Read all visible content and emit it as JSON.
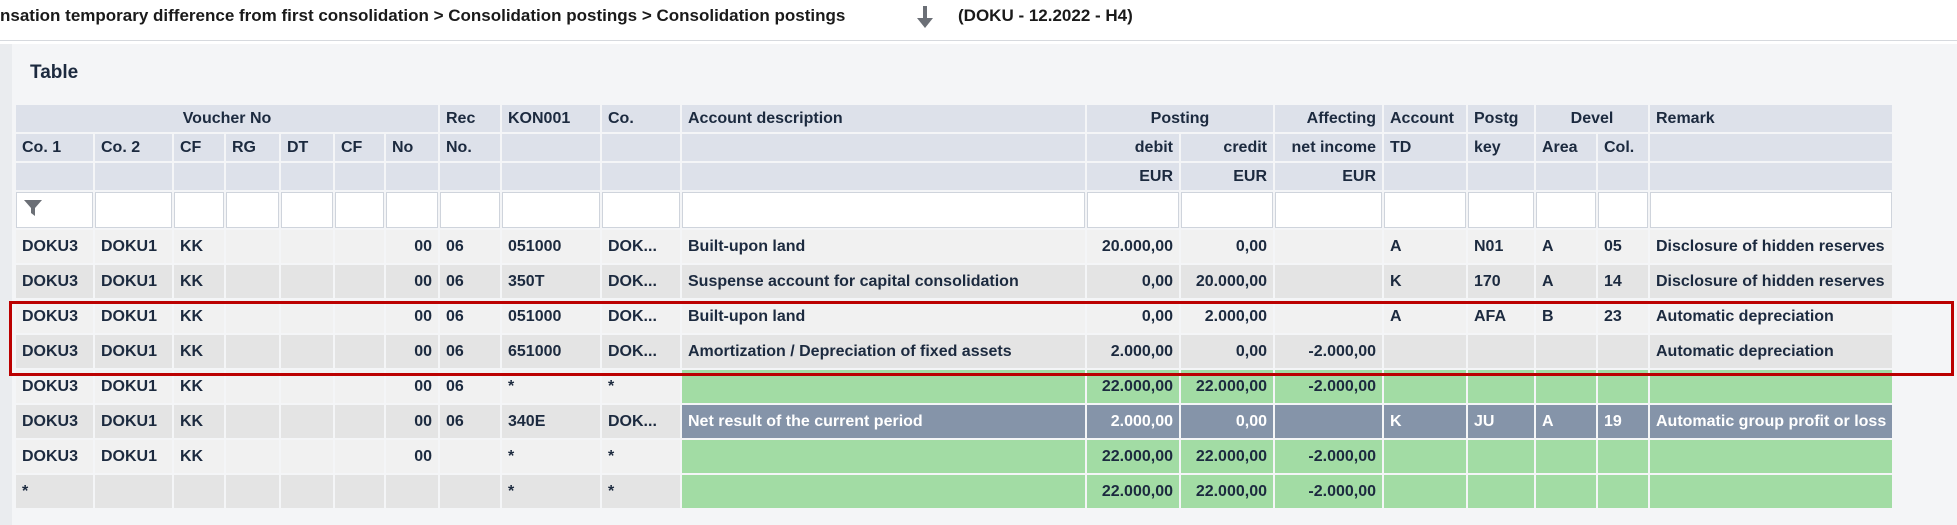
{
  "breadcrumb": {
    "path": "nsation temporary difference from first consolidation > Consolidation postings > Consolidation postings",
    "context": "(DOKU - 12.2022 - H4)"
  },
  "panel": {
    "title": "Table"
  },
  "header": {
    "group_voucher": "Voucher No",
    "rec": "Rec",
    "rec_no": "No.",
    "kon001": "KON001",
    "co": "Co.",
    "account_description": "Account description",
    "posting": "Posting",
    "debit": "debit",
    "credit": "credit",
    "debit_cur": "EUR",
    "credit_cur": "EUR",
    "affecting": "Affecting",
    "net_income": "net income",
    "affecting_cur": "EUR",
    "account": "Account",
    "td": "TD",
    "postg": "Postg",
    "key": "key",
    "devel": "Devel",
    "area": "Area",
    "col": "Col.",
    "remark": "Remark",
    "co1": "Co. 1",
    "co2": "Co. 2",
    "cf": "CF",
    "rg": "RG",
    "dt": "DT",
    "cf2": "CF",
    "no": "No"
  },
  "rows": [
    {
      "co1": "DOKU3",
      "co2": "DOKU1",
      "cf": "KK",
      "rg": "",
      "dt": "",
      "cf2": "",
      "no": "00",
      "rec": "06",
      "kon": "051000",
      "co": "DOK...",
      "desc": "Built-upon land",
      "debit": "20.000,00",
      "credit": "0,00",
      "aff": "",
      "acctd": "A",
      "key": "N01",
      "area": "A",
      "col": "05",
      "remark": "Disclosure of hidden reserves"
    },
    {
      "co1": "DOKU3",
      "co2": "DOKU1",
      "cf": "KK",
      "rg": "",
      "dt": "",
      "cf2": "",
      "no": "00",
      "rec": "06",
      "kon": "350T",
      "co": "DOK...",
      "desc": "Suspense account for capital consolidation",
      "debit": "0,00",
      "credit": "20.000,00",
      "aff": "",
      "acctd": "K",
      "key": "170",
      "area": "A",
      "col": "14",
      "remark": "Disclosure of hidden reserves"
    },
    {
      "co1": "DOKU3",
      "co2": "DOKU1",
      "cf": "KK",
      "rg": "",
      "dt": "",
      "cf2": "",
      "no": "00",
      "rec": "06",
      "kon": "051000",
      "co": "DOK...",
      "desc": "Built-upon land",
      "debit": "0,00",
      "credit": "2.000,00",
      "aff": "",
      "acctd": "A",
      "key": "AFA",
      "area": "B",
      "col": "23",
      "remark": "Automatic depreciation"
    },
    {
      "co1": "DOKU3",
      "co2": "DOKU1",
      "cf": "KK",
      "rg": "",
      "dt": "",
      "cf2": "",
      "no": "00",
      "rec": "06",
      "kon": "651000",
      "co": "DOK...",
      "desc": "Amortization / Depreciation of fixed assets",
      "debit": "2.000,00",
      "credit": "0,00",
      "aff": "-2.000,00",
      "acctd": "",
      "key": "",
      "area": "",
      "col": "",
      "remark": "Automatic depreciation"
    },
    {
      "co1": "DOKU3",
      "co2": "DOKU1",
      "cf": "KK",
      "rg": "",
      "dt": "",
      "cf2": "",
      "no": "00",
      "rec": "06",
      "kon": "*",
      "co": "*",
      "desc": "",
      "debit": "22.000,00",
      "credit": "22.000,00",
      "aff": "-2.000,00",
      "acctd": "",
      "key": "",
      "area": "",
      "col": "",
      "remark": ""
    },
    {
      "co1": "DOKU3",
      "co2": "DOKU1",
      "cf": "KK",
      "rg": "",
      "dt": "",
      "cf2": "",
      "no": "00",
      "rec": "06",
      "kon": "340E",
      "co": "DOK...",
      "desc": "Net result of the current period",
      "debit": "2.000,00",
      "credit": "0,00",
      "aff": "",
      "acctd": "K",
      "key": "JU",
      "area": "A",
      "col": "19",
      "remark": "Automatic group profit or loss"
    },
    {
      "co1": "DOKU3",
      "co2": "DOKU1",
      "cf": "KK",
      "rg": "",
      "dt": "",
      "cf2": "",
      "no": "00",
      "rec": "",
      "kon": "*",
      "co": "*",
      "desc": "",
      "debit": "22.000,00",
      "credit": "22.000,00",
      "aff": "-2.000,00",
      "acctd": "",
      "key": "",
      "area": "",
      "col": "",
      "remark": ""
    },
    {
      "co1": "*",
      "co2": "",
      "cf": "",
      "rg": "",
      "dt": "",
      "cf2": "",
      "no": "",
      "rec": "",
      "kon": "*",
      "co": "*",
      "desc": "",
      "debit": "22.000,00",
      "credit": "22.000,00",
      "aff": "-2.000,00",
      "acctd": "",
      "key": "",
      "area": "",
      "col": "",
      "remark": ""
    }
  ],
  "icons": {
    "filter": "filter-funnel-icon",
    "download": "arrow-down-icon"
  },
  "colors": {
    "subtotal_green": "#a2dca4",
    "result_row": "#8594a9",
    "selection_border": "#bb0000",
    "header_bg": "#dde1ea"
  }
}
